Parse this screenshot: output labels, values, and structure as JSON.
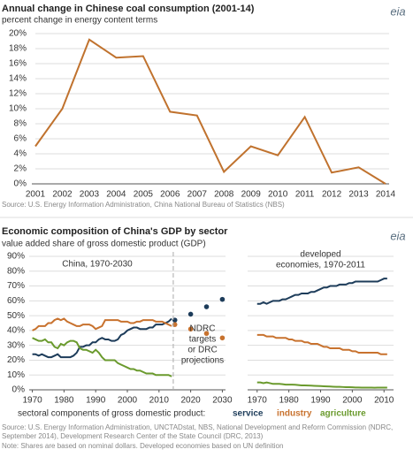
{
  "chart_data": [
    {
      "type": "line",
      "title": "Annual change in Chinese coal consumption (2001-14)",
      "subtitle": "percent change in energy content terms",
      "logo": "eia",
      "x": [
        2001,
        2002,
        2003,
        2004,
        2005,
        2006,
        2007,
        2008,
        2009,
        2010,
        2011,
        2012,
        2013,
        2014
      ],
      "series": [
        {
          "color": "#c0722e",
          "values": [
            5,
            10,
            19.2,
            16.8,
            17,
            9.6,
            9.1,
            1.6,
            5,
            3.8,
            8.9,
            1.5,
            2.2,
            0
          ]
        }
      ],
      "xlim": [
        2001,
        2014
      ],
      "xticks": [
        2001,
        2002,
        2003,
        2004,
        2005,
        2006,
        2007,
        2008,
        2009,
        2010,
        2011,
        2012,
        2013,
        2014
      ],
      "ylim": [
        0,
        20
      ],
      "yticks": [
        {
          "value": 0,
          "label": "0%"
        },
        {
          "value": 2,
          "label": "2%"
        },
        {
          "value": 4,
          "label": "4%"
        },
        {
          "value": 6,
          "label": "6%"
        },
        {
          "value": 8,
          "label": "8%"
        },
        {
          "value": 10,
          "label": "10%"
        },
        {
          "value": 12,
          "label": "12%"
        },
        {
          "value": 14,
          "label": "14%"
        },
        {
          "value": 16,
          "label": "16%"
        },
        {
          "value": 18,
          "label": "18%"
        },
        {
          "value": 20,
          "label": "20%"
        }
      ],
      "grid": true,
      "source": [
        "Source: U.S. Energy Information Administration, China National Bureau of Statistics (NBS)"
      ]
    },
    {
      "type": "line",
      "title": "Economic composition of China's GDP by sector",
      "subtitle": "value  added share of gross domestic product (GDP)",
      "logo": "eia",
      "ylim": [
        0,
        90
      ],
      "yticks": [
        {
          "value": 0,
          "label": "0%"
        },
        {
          "value": 10,
          "label": "10%"
        },
        {
          "value": 20,
          "label": "20%"
        },
        {
          "value": 30,
          "label": "30%"
        },
        {
          "value": 40,
          "label": "40%"
        },
        {
          "value": 50,
          "label": "50%"
        },
        {
          "value": 60,
          "label": "60%"
        },
        {
          "value": 70,
          "label": "70%"
        },
        {
          "value": 80,
          "label": "80%"
        },
        {
          "value": 90,
          "label": "90%"
        }
      ],
      "grid": true,
      "legend_label": "sectoral components of gross domestic product:",
      "panels": [
        {
          "label": [
            "China, 1970-2030"
          ],
          "xlim": [
            1969,
            2031
          ],
          "xticks": [
            1970,
            1980,
            1990,
            2000,
            2010,
            2020,
            2030
          ],
          "projection_label": [
            "NDRC",
            "targets",
            "or DRC",
            "projections"
          ],
          "series": [
            {
              "name": "service",
              "color": "#1d3c5a",
              "x": [
                1970,
                1971,
                1972,
                1973,
                1974,
                1975,
                1976,
                1977,
                1978,
                1979,
                1980,
                1981,
                1982,
                1983,
                1984,
                1985,
                1986,
                1987,
                1988,
                1989,
                1990,
                1991,
                1992,
                1993,
                1994,
                1995,
                1996,
                1997,
                1998,
                1999,
                2000,
                2001,
                2002,
                2003,
                2004,
                2005,
                2006,
                2007,
                2008,
                2009,
                2010,
                2011,
                2012,
                2013,
                2014
              ],
              "values": [
                24,
                24,
                23,
                24,
                23,
                22,
                22,
                23,
                24,
                22,
                22,
                22,
                22,
                23,
                25,
                29,
                29,
                30,
                30,
                32,
                32,
                34,
                35,
                34,
                34,
                33,
                33,
                34,
                37,
                38,
                40,
                41,
                42,
                42,
                41,
                41,
                41,
                42,
                42,
                44,
                44,
                44,
                45,
                46,
                48
              ],
              "projection_x": [
                2015,
                2020,
                2025,
                2030
              ],
              "projection_values": [
                47,
                51,
                56,
                61
              ]
            },
            {
              "name": "industry",
              "color": "#c8722e",
              "x": [
                1970,
                1971,
                1972,
                1973,
                1974,
                1975,
                1976,
                1977,
                1978,
                1979,
                1980,
                1981,
                1982,
                1983,
                1984,
                1985,
                1986,
                1987,
                1988,
                1989,
                1990,
                1991,
                1992,
                1993,
                1994,
                1995,
                1996,
                1997,
                1998,
                1999,
                2000,
                2001,
                2002,
                2003,
                2004,
                2005,
                2006,
                2007,
                2008,
                2009,
                2010,
                2011,
                2012,
                2013,
                2014
              ],
              "values": [
                40,
                41,
                43,
                43,
                43,
                45,
                45,
                47,
                48,
                47,
                48,
                46,
                45,
                44,
                43,
                43,
                44,
                44,
                44,
                43,
                41,
                42,
                43,
                47,
                47,
                47,
                47,
                47,
                46,
                46,
                46,
                45,
                45,
                46,
                46,
                47,
                47,
                47,
                47,
                46,
                46,
                46,
                45,
                44,
                43
              ],
              "projection_x": [
                2015,
                2020,
                2025,
                2030
              ],
              "projection_values": [
                44,
                41,
                38,
                35
              ]
            },
            {
              "name": "agriculture",
              "color": "#6a9a2d",
              "x": [
                1970,
                1971,
                1972,
                1973,
                1974,
                1975,
                1976,
                1977,
                1978,
                1979,
                1980,
                1981,
                1982,
                1983,
                1984,
                1985,
                1986,
                1987,
                1988,
                1989,
                1990,
                1991,
                1992,
                1993,
                1994,
                1995,
                1996,
                1997,
                1998,
                1999,
                2000,
                2001,
                2002,
                2003,
                2004,
                2005,
                2006,
                2007,
                2008,
                2009,
                2010,
                2011,
                2012,
                2013,
                2014
              ],
              "values": [
                35,
                34,
                33,
                33,
                34,
                32,
                32,
                29,
                28,
                31,
                30,
                32,
                33,
                33,
                32,
                28,
                27,
                27,
                26,
                25,
                27,
                25,
                22,
                20,
                20,
                20,
                20,
                18,
                17,
                16,
                15,
                14,
                14,
                13,
                13,
                12,
                11,
                11,
                11,
                10,
                10,
                10,
                10,
                10,
                9
              ]
            }
          ]
        },
        {
          "label": [
            "developed",
            "economies, 1970-2011"
          ],
          "xlim": [
            1967,
            2013
          ],
          "xticks": [
            1970,
            1980,
            1990,
            2000,
            2010
          ],
          "series": [
            {
              "color": "#1d3c5a",
              "x": [
                1970,
                1971,
                1972,
                1973,
                1974,
                1975,
                1976,
                1977,
                1978,
                1979,
                1980,
                1981,
                1982,
                1983,
                1984,
                1985,
                1986,
                1987,
                1988,
                1989,
                1990,
                1991,
                1992,
                1993,
                1994,
                1995,
                1996,
                1997,
                1998,
                1999,
                2000,
                2001,
                2002,
                2003,
                2004,
                2005,
                2006,
                2007,
                2008,
                2009,
                2010,
                2011
              ],
              "values": [
                58,
                58,
                59,
                58,
                59,
                60,
                60,
                60,
                61,
                61,
                62,
                63,
                64,
                64,
                65,
                65,
                65,
                66,
                66,
                67,
                68,
                69,
                69,
                70,
                70,
                70,
                71,
                71,
                71,
                72,
                72,
                73,
                73,
                73,
                73,
                73,
                73,
                73,
                73,
                74,
                75,
                75
              ]
            },
            {
              "color": "#c8722e",
              "x": [
                1970,
                1971,
                1972,
                1973,
                1974,
                1975,
                1976,
                1977,
                1978,
                1979,
                1980,
                1981,
                1982,
                1983,
                1984,
                1985,
                1986,
                1987,
                1988,
                1989,
                1990,
                1991,
                1992,
                1993,
                1994,
                1995,
                1996,
                1997,
                1998,
                1999,
                2000,
                2001,
                2002,
                2003,
                2004,
                2005,
                2006,
                2007,
                2008,
                2009,
                2010,
                2011
              ],
              "values": [
                37,
                37,
                37,
                36,
                36,
                36,
                35,
                35,
                35,
                35,
                34,
                34,
                33,
                33,
                33,
                32,
                32,
                31,
                31,
                31,
                30,
                29,
                29,
                28,
                28,
                28,
                28,
                27,
                27,
                27,
                26,
                26,
                25,
                25,
                25,
                25,
                25,
                25,
                25,
                24,
                24,
                24
              ]
            },
            {
              "color": "#6a9a2d",
              "x": [
                1970,
                1971,
                1972,
                1973,
                1974,
                1975,
                1976,
                1977,
                1978,
                1979,
                1980,
                1981,
                1982,
                1983,
                1984,
                1985,
                1986,
                1987,
                1988,
                1989,
                1990,
                1991,
                1992,
                1993,
                1994,
                1995,
                1996,
                1997,
                1998,
                1999,
                2000,
                2001,
                2002,
                2003,
                2004,
                2005,
                2006,
                2007,
                2008,
                2009,
                2010,
                2011
              ],
              "values": [
                5,
                5,
                4.5,
                5,
                4.5,
                4,
                4,
                4,
                3.8,
                3.5,
                3.5,
                3.5,
                3.4,
                3.2,
                3,
                3,
                2.9,
                2.8,
                2.7,
                2.6,
                2.5,
                2.4,
                2.3,
                2.2,
                2.1,
                2,
                2,
                1.9,
                1.8,
                1.8,
                1.7,
                1.6,
                1.6,
                1.5,
                1.5,
                1.5,
                1.5,
                1.4,
                1.5,
                1.5,
                1.5,
                1.5
              ]
            }
          ]
        }
      ],
      "source": [
        "Source: U.S. Energy Information Administration, UNCTADstat, NBS, National Development and Reform Commission (NDRC,",
        "September 2014), Development Research Center of the State Council (DRC, 2013)"
      ],
      "note": "Note: Shares are based on nominal dollars. Developed economies based on UN definition"
    }
  ]
}
